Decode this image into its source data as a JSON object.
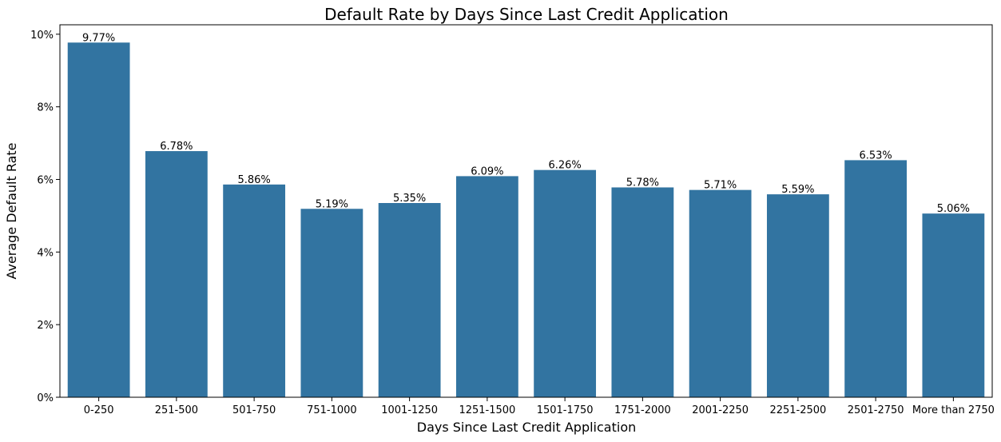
{
  "chart_data": {
    "type": "bar",
    "title": "Default Rate by Days Since Last Credit Application",
    "xlabel": "Days Since Last Credit Application",
    "ylabel": "Average Default Rate",
    "categories": [
      "0-250",
      "251-500",
      "501-750",
      "751-1000",
      "1001-1250",
      "1251-1500",
      "1501-1750",
      "1751-2000",
      "2001-2250",
      "2251-2500",
      "2501-2750",
      "More than 2750"
    ],
    "values": [
      9.77,
      6.78,
      5.86,
      5.19,
      5.35,
      6.09,
      6.26,
      5.78,
      5.71,
      5.59,
      6.53,
      5.06
    ],
    "value_labels": [
      "9.77%",
      "6.78%",
      "5.86%",
      "5.19%",
      "5.35%",
      "6.09%",
      "6.26%",
      "5.78%",
      "5.71%",
      "5.59%",
      "6.53%",
      "5.06%"
    ],
    "y_ticks": [
      0,
      2,
      4,
      6,
      8,
      10
    ],
    "y_tick_labels": [
      "0%",
      "2%",
      "4%",
      "6%",
      "8%",
      "10%"
    ],
    "ylim": [
      0,
      10.26
    ],
    "bar_color": "#3274a1",
    "grid": false,
    "legend": false
  }
}
